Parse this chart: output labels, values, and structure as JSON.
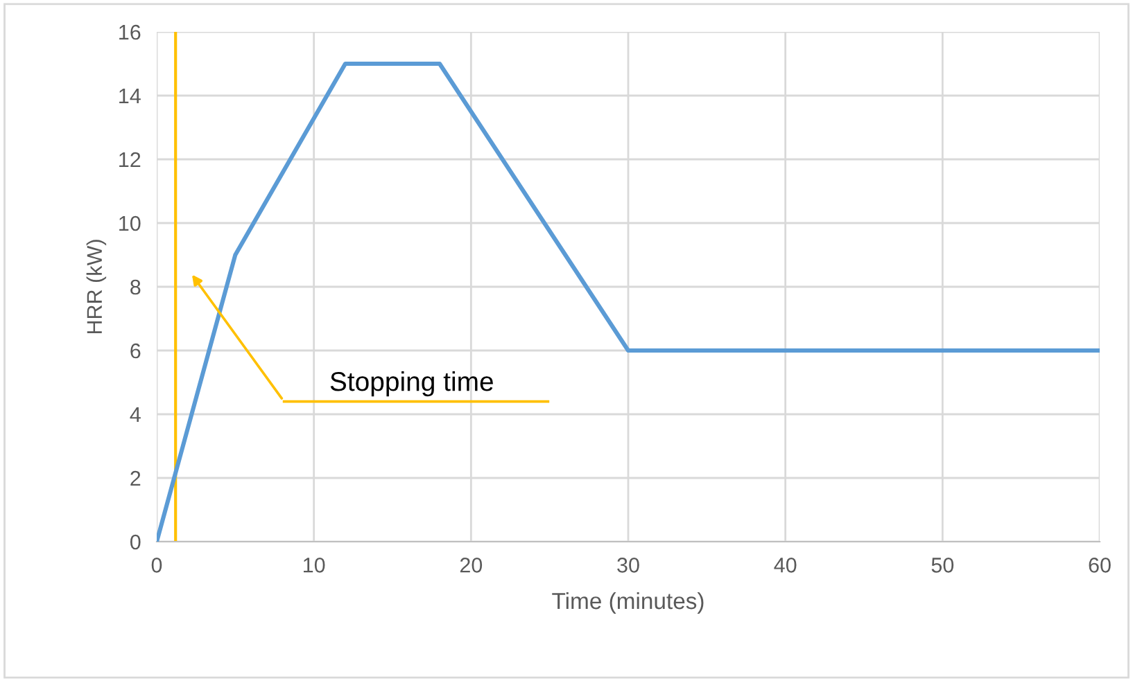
{
  "chart_data": {
    "type": "line",
    "xlabel": "Time (minutes)",
    "ylabel": "HRR (kW)",
    "x": [
      0,
      5,
      12,
      18,
      30,
      60
    ],
    "series": [
      {
        "color": "#5b9bd5",
        "values": [
          0,
          9,
          15,
          15,
          6,
          6
        ]
      }
    ],
    "xlim": [
      0,
      60
    ],
    "xticks": [
      0,
      10,
      20,
      30,
      40,
      50,
      60
    ],
    "ylim": [
      0,
      16
    ],
    "yticks": [
      0,
      2,
      4,
      6,
      8,
      10,
      12,
      14,
      16
    ],
    "grid": true,
    "marker": "none",
    "line_style": "solid",
    "ref_lines": [
      {
        "axis": "x",
        "value": 1.2,
        "color": "#ffc000"
      }
    ],
    "annotations": [
      "Stopping time"
    ]
  }
}
